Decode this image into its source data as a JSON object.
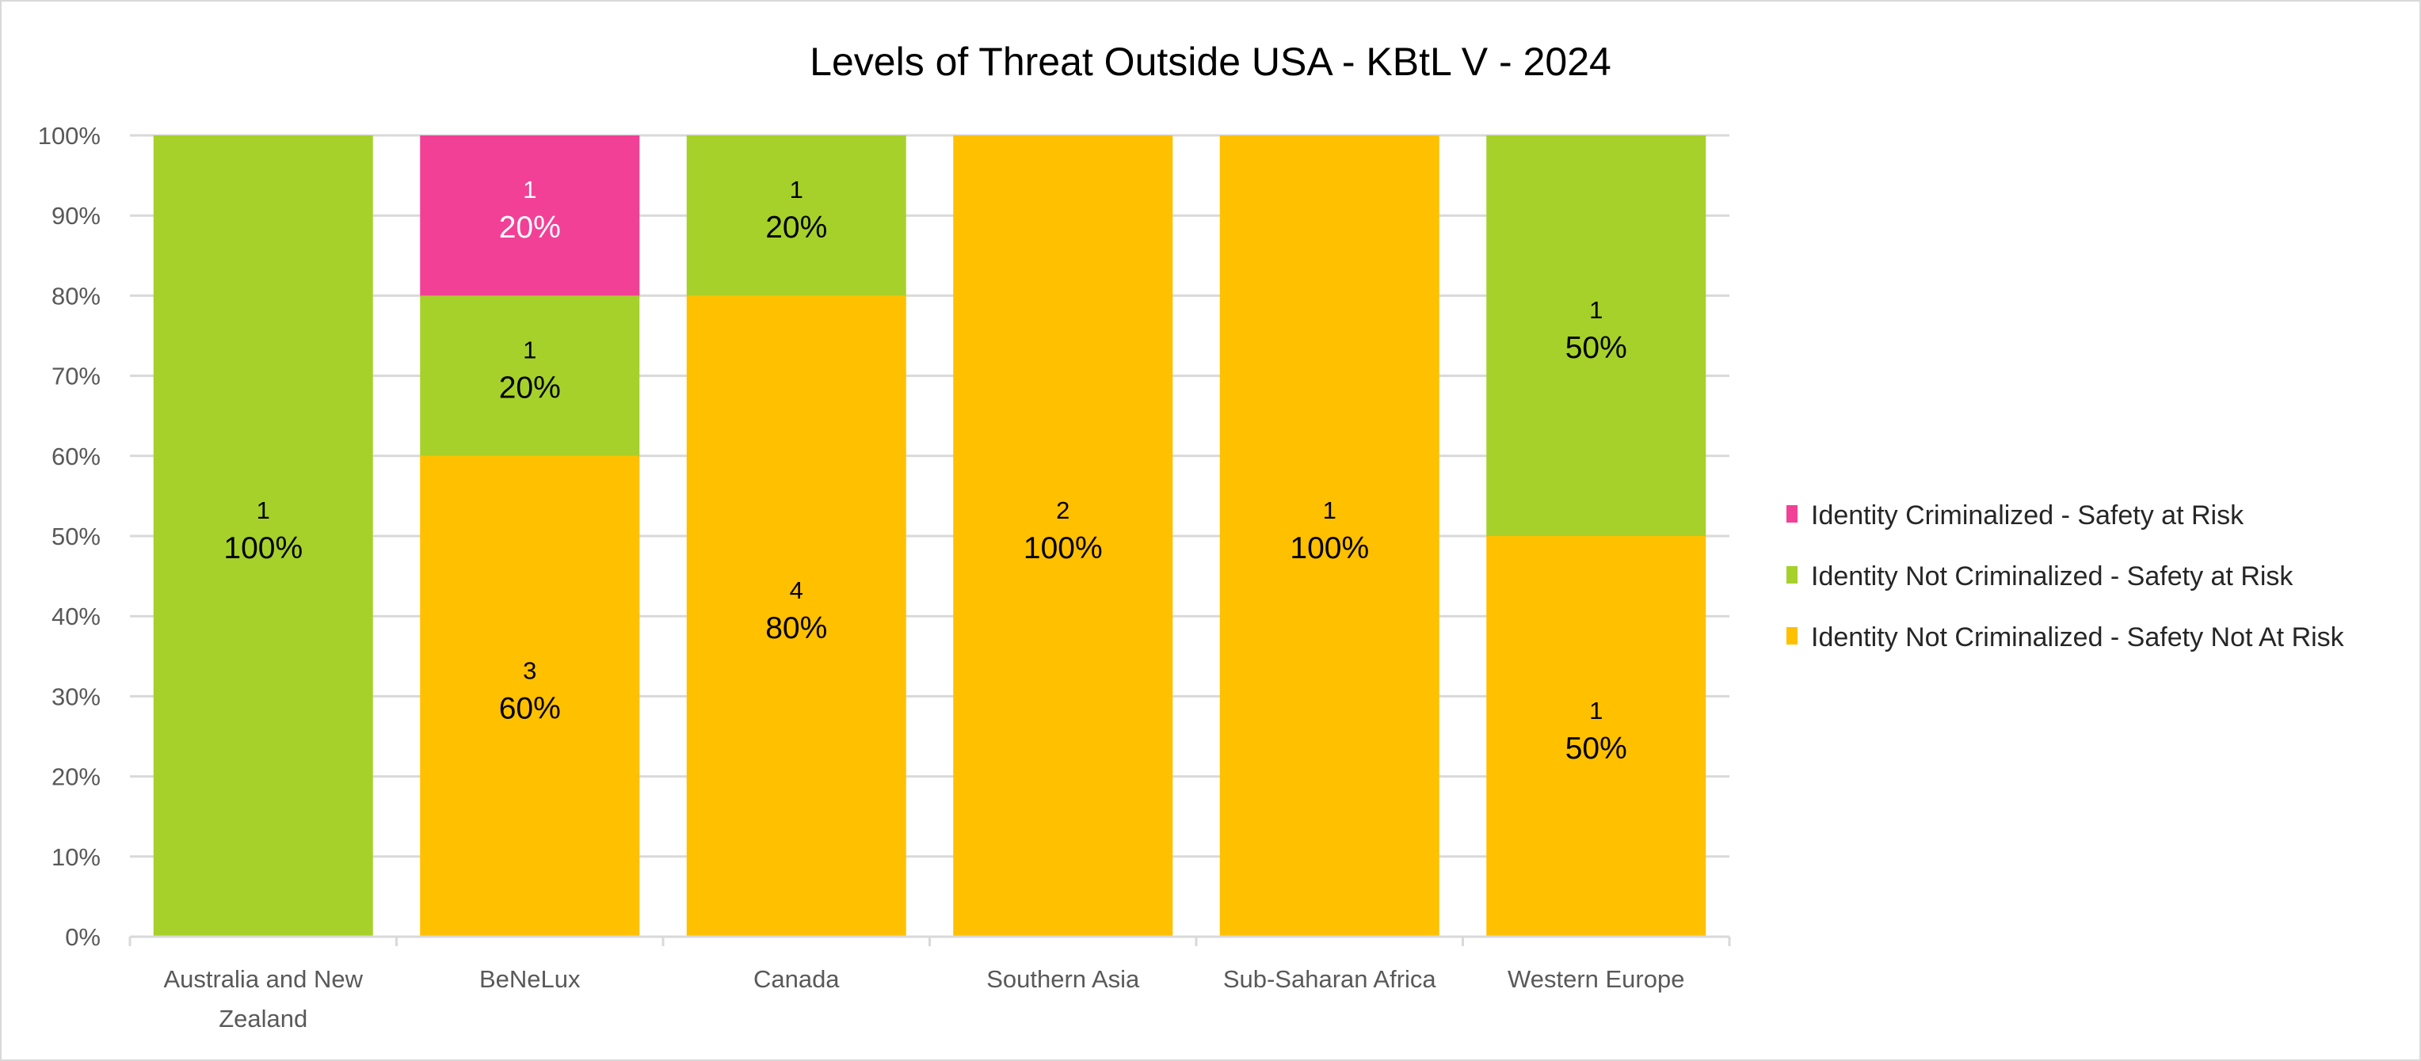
{
  "chart_data": {
    "type": "bar",
    "stacked": "percent",
    "title": "Levels of Threat Outside USA - KBtL V - 2024",
    "xlabel": "",
    "ylabel": "",
    "ylim": [
      0,
      100
    ],
    "yticks": [
      "0%",
      "10%",
      "20%",
      "30%",
      "40%",
      "50%",
      "60%",
      "70%",
      "80%",
      "90%",
      "100%"
    ],
    "grid": true,
    "legend_position": "right",
    "categories": [
      "Australia and New Zealand",
      "BeNeLux",
      "Canada",
      "Southern Asia",
      "Sub-Saharan Africa",
      "Western Europe"
    ],
    "series": [
      {
        "name": "Identity Not Criminalized - Safety Not At Risk",
        "color": "#FFC000",
        "label_color": "#000000",
        "counts": [
          0,
          3,
          4,
          2,
          1,
          1
        ],
        "percent": [
          0,
          60,
          80,
          100,
          100,
          50
        ]
      },
      {
        "name": "Identity Not Criminalized - Safety at Risk",
        "color": "#A6D12A",
        "label_color": "#000000",
        "counts": [
          1,
          1,
          1,
          0,
          0,
          1
        ],
        "percent": [
          100,
          20,
          20,
          0,
          0,
          50
        ]
      },
      {
        "name": "Identity Criminalized - Safety at Risk",
        "color": "#F24097",
        "label_color": "#FFFFFF",
        "counts": [
          0,
          1,
          0,
          0,
          0,
          0
        ],
        "percent": [
          0,
          20,
          0,
          0,
          0,
          0
        ]
      }
    ]
  }
}
